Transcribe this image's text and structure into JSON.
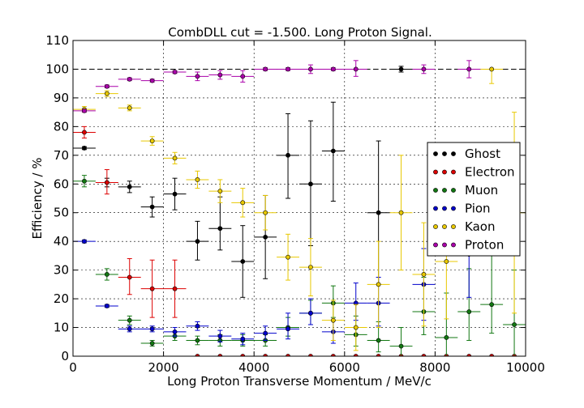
{
  "chart_data": {
    "type": "scatter",
    "title": "CombDLL cut = -1.500. Long Proton Signal.",
    "xlabel": "Long Proton Transverse Momentum / MeV/c",
    "ylabel": "Efficiency / %",
    "xlim": [
      0,
      10000
    ],
    "ylim": [
      0,
      110
    ],
    "xticks": [
      0,
      2000,
      4000,
      6000,
      8000,
      10000
    ],
    "yticks": [
      0,
      10,
      20,
      30,
      40,
      50,
      60,
      70,
      80,
      90,
      100,
      110
    ],
    "grid": true,
    "reference_line": 100,
    "legend_position": "center-right",
    "x": [
      250,
      750,
      1250,
      1750,
      2250,
      2750,
      3250,
      3750,
      4250,
      4750,
      5250,
      5750,
      6250,
      6750,
      7250,
      7750,
      8250,
      8750,
      9250,
      9750
    ],
    "x_halfwidth": 250,
    "series": [
      {
        "name": "Ghost",
        "color": "#000000",
        "values": [
          72.5,
          60.5,
          59,
          52,
          56.5,
          40,
          44.5,
          33,
          41.5,
          70,
          60,
          71.5,
          null,
          50,
          100,
          null,
          null,
          null,
          null,
          null
        ],
        "err_lo": [
          0.5,
          1.5,
          2,
          3.5,
          5.5,
          6.5,
          7.5,
          12.5,
          14.5,
          15,
          21.5,
          17.5,
          null,
          25,
          1,
          null,
          null,
          null,
          null,
          null
        ],
        "err_hi": [
          0.5,
          1.5,
          2,
          3.5,
          5.5,
          7,
          11,
          12.5,
          14.5,
          14.5,
          22,
          17,
          null,
          25,
          1,
          null,
          null,
          null,
          null,
          null
        ]
      },
      {
        "name": "Electron",
        "color": "#dd0000",
        "values": [
          78,
          60.5,
          27.5,
          23.5,
          23.5,
          0,
          0,
          0,
          0,
          0,
          0,
          0,
          0,
          0,
          0,
          0,
          0,
          0,
          0,
          0
        ],
        "err_lo": [
          2,
          4,
          6,
          10,
          10,
          0,
          0,
          0,
          0,
          0,
          0,
          0,
          0,
          0,
          0,
          0,
          0,
          0,
          0,
          0
        ],
        "err_hi": [
          2,
          4.5,
          6.5,
          10,
          10,
          0,
          0,
          0,
          0,
          0,
          0,
          0,
          0,
          0,
          0,
          0,
          0,
          0,
          0,
          0
        ]
      },
      {
        "name": "Muon",
        "color": "#117711",
        "values": [
          61,
          28.5,
          12.5,
          4.5,
          7,
          5.5,
          5.5,
          5.5,
          5.5,
          10,
          15,
          18.5,
          7.5,
          5.5,
          3.5,
          15.5,
          6.5,
          15.5,
          18,
          11
        ],
        "err_lo": [
          2,
          2,
          1.5,
          1,
          1.5,
          1.5,
          2,
          2,
          2,
          3,
          4,
          5,
          4,
          4,
          3.5,
          8,
          6.5,
          10,
          10,
          11
        ],
        "err_hi": [
          2,
          2,
          1.5,
          1,
          1.5,
          1.5,
          2,
          2,
          2,
          3.5,
          4.5,
          6,
          6.5,
          6.5,
          6.5,
          12,
          15.5,
          15,
          17.5,
          19
        ]
      },
      {
        "name": "Pion",
        "color": "#0000cc",
        "values": [
          40,
          17.5,
          9.5,
          9.5,
          8.5,
          10.5,
          7,
          6,
          8,
          9.5,
          15,
          8.5,
          18.5,
          18.5,
          null,
          25,
          null,
          35.5,
          null,
          null
        ],
        "err_lo": [
          0.5,
          0.5,
          1,
          1,
          1.5,
          1.5,
          2,
          2,
          2.5,
          3.5,
          4,
          4,
          6,
          8,
          null,
          12.5,
          null,
          15,
          null,
          null
        ],
        "err_hi": [
          0.5,
          0.5,
          1,
          1,
          1.5,
          1.5,
          2,
          2,
          2.5,
          5.5,
          5,
          4,
          7,
          9,
          null,
          12.5,
          null,
          15,
          null,
          null
        ]
      },
      {
        "name": "Kaon",
        "color": "#e8c800",
        "values": [
          86,
          91.5,
          86.5,
          75,
          69,
          61.5,
          57.5,
          53.5,
          50,
          34.5,
          31,
          12.5,
          10,
          25,
          50,
          28.5,
          33,
          null,
          100,
          50
        ],
        "err_lo": [
          1,
          1,
          1,
          1.5,
          2,
          3,
          4,
          5,
          6,
          8,
          10,
          7,
          8,
          15,
          20,
          18,
          20,
          null,
          5,
          35
        ],
        "err_hi": [
          1,
          1,
          1,
          1.5,
          2,
          3,
          4,
          5,
          6,
          8,
          10,
          7,
          8,
          15,
          20,
          18,
          20,
          null,
          0,
          35
        ]
      },
      {
        "name": "Proton",
        "color": "#aa00aa",
        "values": [
          85.5,
          94,
          96.5,
          96,
          99,
          97.5,
          98,
          97.5,
          100,
          100,
          100,
          100,
          100,
          null,
          null,
          100,
          null,
          100,
          null,
          null
        ],
        "err_lo": [
          0.5,
          0.5,
          0.5,
          0.5,
          0.5,
          1.5,
          1.5,
          2,
          0.5,
          0.5,
          1.5,
          0.5,
          2.5,
          null,
          null,
          1.5,
          null,
          3,
          null,
          null
        ],
        "err_hi": [
          0.5,
          0.5,
          0.5,
          0.5,
          0.5,
          1.5,
          1.5,
          2,
          0.5,
          0.5,
          1.5,
          0.5,
          3,
          null,
          null,
          1.5,
          null,
          3,
          null,
          null
        ]
      }
    ]
  }
}
